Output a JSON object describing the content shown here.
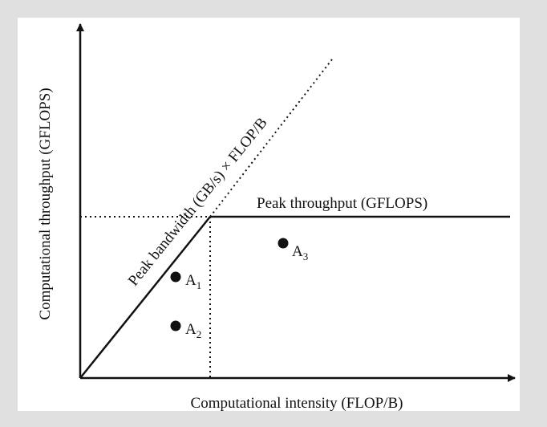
{
  "colors": {
    "page_background": "#e0e0e0",
    "figure_background": "#ffffff",
    "ink": "#111111"
  },
  "diagram": {
    "x_axis_label": "Computational intensity (FLOP/B)",
    "y_axis_label": "Computational throughput (GFLOPS)",
    "roof_label": "Peak throughput (GFLOPS)",
    "slope_label": "Peak bandwidth (GB/s) × FLOP/B",
    "points": [
      {
        "letter": "A",
        "sub": "1"
      },
      {
        "letter": "A",
        "sub": "2"
      },
      {
        "letter": "A",
        "sub": "3"
      }
    ]
  }
}
